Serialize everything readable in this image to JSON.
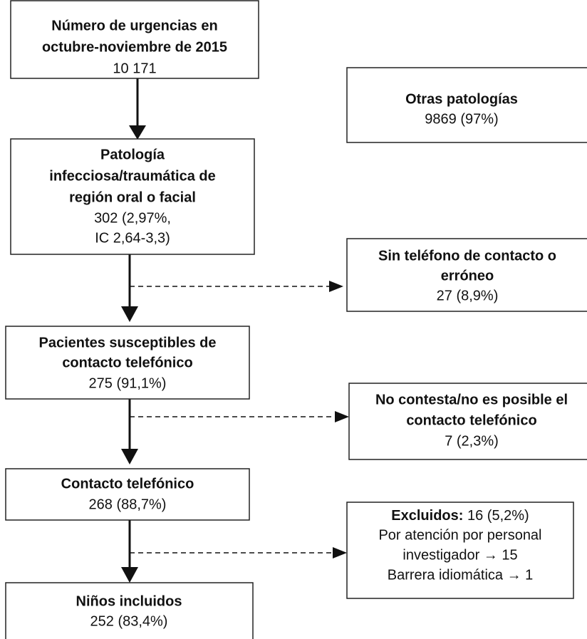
{
  "nodes": [
    {
      "title": [
        "Número de urgencias en",
        "octubre-noviembre de 2015"
      ],
      "detail": [
        "10 171"
      ]
    },
    {
      "title": [
        "Otras patologías"
      ],
      "detail": [
        "9869 (97%)"
      ]
    },
    {
      "title": [
        "Patología",
        "infecciosa/traumática de",
        "región oral o facial"
      ],
      "detail": [
        "302 (2,97%,",
        "IC 2,64-3,3)"
      ]
    },
    {
      "title": [
        "Sin teléfono de contacto o",
        "erróneo"
      ],
      "detail": [
        "27 (8,9%)"
      ]
    },
    {
      "title": [
        "Pacientes susceptibles de",
        "contacto telefónico"
      ],
      "detail": [
        "275 (91,1%)"
      ]
    },
    {
      "title": [
        "No contesta/no es posible el",
        "contacto telefónico"
      ],
      "detail": [
        "7 (2,3%)"
      ]
    },
    {
      "title": [
        "Contacto telefónico"
      ],
      "detail": [
        "268 (88,7%)"
      ]
    },
    {
      "title": [
        "Excluidos:"
      ],
      "detail": [
        "16 (5,2%)",
        "Por atención por personal",
        "investigador → 15",
        "Barrera idiomática → 1"
      ]
    },
    {
      "title": [
        "Niños incluidos"
      ],
      "detail": [
        "252 (83,4%)"
      ]
    }
  ]
}
